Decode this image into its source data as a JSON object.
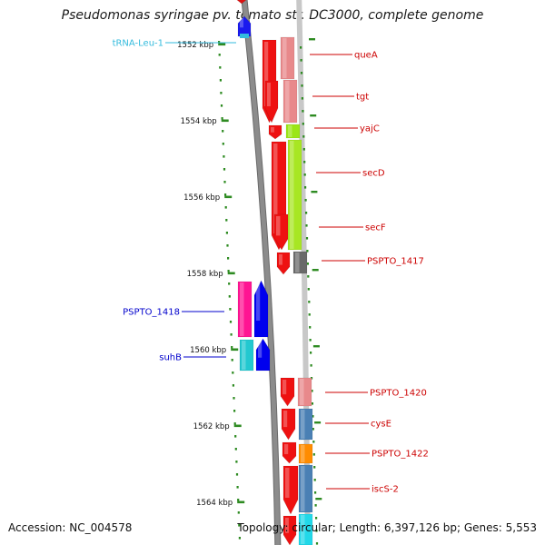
{
  "title": "Pseudomonas syringae pv. tomato str. DC3000, complete genome",
  "footer": {
    "accession": "Accession: NC_004578",
    "summary": "Topology: circular; Length: 6,397,126 bp; Genes: 5,553"
  },
  "scale": {
    "unit": "kbp",
    "view_start_kbp": 1551.5,
    "view_end_kbp": 1564.5,
    "ticks": [
      "1552 kbp",
      "1554 kbp",
      "1556 kbp",
      "1558 kbp",
      "1560 kbp",
      "1562 kbp",
      "1564 kbp"
    ]
  },
  "colors": {
    "backbone": "#8c8c8c",
    "tick_dots": "#2e8b22",
    "forward_label": "#cc0000",
    "reverse_label": "#0000cc",
    "trna_label": "#33bbdd"
  },
  "genes": [
    {
      "label": "queA",
      "strand": "forward"
    },
    {
      "label": "tgt",
      "strand": "forward"
    },
    {
      "label": "yajC",
      "strand": "forward"
    },
    {
      "label": "secD",
      "strand": "forward"
    },
    {
      "label": "secF",
      "strand": "forward"
    },
    {
      "label": "PSPTO_1417",
      "strand": "forward"
    },
    {
      "label": "PSPTO_1418",
      "strand": "reverse"
    },
    {
      "label": "suhB",
      "strand": "reverse"
    },
    {
      "label": "PSPTO_1420",
      "strand": "forward"
    },
    {
      "label": "cysE",
      "strand": "forward"
    },
    {
      "label": "PSPTO_1422",
      "strand": "forward"
    },
    {
      "label": "iscS-2",
      "strand": "forward"
    },
    {
      "label": "tRNA-Leu-1",
      "strand": "reverse"
    }
  ]
}
